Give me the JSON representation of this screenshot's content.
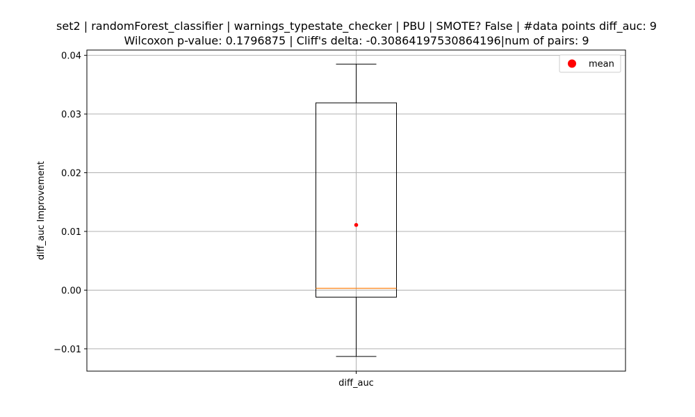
{
  "chart_data": {
    "type": "box",
    "title_lines": [
      "set2 | randomForest_classifier | warnings_typestate_checker | PBU | SMOTE? False | #data points diff_auc: 9",
      "Wilcoxon p-value: 0.1796875 | Cliff's delta: -0.30864197530864196|num of pairs: 9"
    ],
    "xlabel": "",
    "ylabel": "diff_auc Improvement",
    "categories": [
      "diff_auc"
    ],
    "ylim": [
      -0.0138,
      0.0409
    ],
    "yticks": [
      -0.01,
      0.0,
      0.01,
      0.02,
      0.03,
      0.04
    ],
    "ytick_labels": [
      "−0.01",
      "0.00",
      "0.01",
      "0.02",
      "0.03",
      "0.04"
    ],
    "grid": true,
    "legend": {
      "placement": "top-right",
      "entries": [
        "mean"
      ]
    },
    "boxes": [
      {
        "name": "diff_auc",
        "whisker_low": -0.0113,
        "q1": -0.0012,
        "median": 0.0003,
        "q3": 0.0319,
        "whisker_high": 0.0385,
        "mean": 0.0111
      }
    ],
    "colors": {
      "box": "#000000",
      "median": "#ff7f0e",
      "mean": "#ff0000",
      "grid": "#b0b0b0"
    }
  }
}
